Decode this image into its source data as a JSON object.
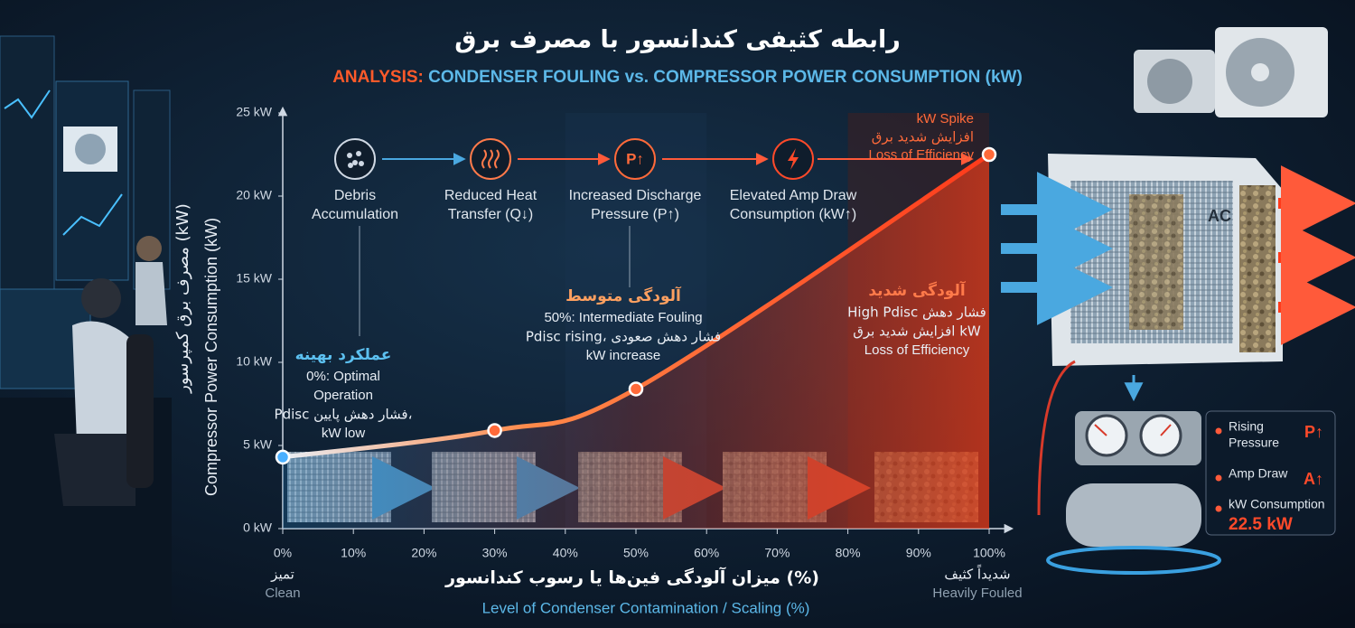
{
  "chart_data": {
    "type": "line",
    "title": "رابطه کثیفی کندانسور با مصرف برق",
    "subtitle": {
      "lead": "ANALYSIS:",
      "text": "CONDENSER FOULING vs. COMPRESSOR POWER CONSUMPTION (kW)"
    },
    "ylabel": [
      "مصرف برق کمپرسور (kW)",
      "Compressor Power Consumption (kW)"
    ],
    "xlabel": [
      "میزان آلودگی فین‌ها یا رسوب کندانسور (%)",
      "Level of Condenser Contamination / Scaling (%)"
    ],
    "x_end_labels": {
      "start": [
        "تمیز",
        "Clean"
      ],
      "end": [
        "شدیداً کثیف",
        "Heavily Fouled"
      ]
    },
    "x": [
      0,
      30,
      50,
      100
    ],
    "series": [
      {
        "name": "Compressor Power Consumption",
        "color": "#ff4a2a",
        "values": [
          4.3,
          5.9,
          8.4,
          22.5
        ]
      }
    ],
    "xlim": [
      0,
      100
    ],
    "ylim": [
      0,
      25
    ],
    "xticks": [
      {
        "value": 0,
        "label": "0%"
      },
      {
        "value": 10,
        "label": "10%"
      },
      {
        "value": 20,
        "label": "20%"
      },
      {
        "value": 30,
        "label": "30%"
      },
      {
        "value": 40,
        "label": "40%"
      },
      {
        "value": 50,
        "label": "50%"
      },
      {
        "value": 60,
        "label": "60%"
      },
      {
        "value": 70,
        "label": "70%"
      },
      {
        "value": 80,
        "label": "80%"
      },
      {
        "value": 90,
        "label": "90%"
      },
      {
        "value": 100,
        "label": "100%"
      }
    ],
    "yticks": [
      {
        "value": 0,
        "label": "0 kW"
      },
      {
        "value": 5,
        "label": "5 kW"
      },
      {
        "value": 10,
        "label": "10 kW"
      },
      {
        "value": 15,
        "label": "15 kW"
      },
      {
        "value": 20,
        "label": "20 kW"
      },
      {
        "value": 25,
        "label": "25 kW"
      }
    ],
    "process_steps": [
      {
        "lines": [
          "Debris",
          "Accumulation"
        ]
      },
      {
        "lines": [
          "Reduced Heat",
          "Transfer (Q↓)"
        ]
      },
      {
        "icon": "P↑",
        "lines": [
          "Increased Discharge",
          "Pressure (P↑)"
        ]
      },
      {
        "lines": [
          "Elevated Amp Draw",
          "Consumption (kW↑)"
        ]
      }
    ],
    "annotations": [
      {
        "x": 0,
        "heading": "عملکرد بهینه",
        "lines": [
          "0%: Optimal",
          "Operation",
          "Pdisc فشار دهش پایین،",
          "kW low"
        ]
      },
      {
        "x": 50,
        "heading": "آلودگی متوسط",
        "lines": [
          "50%: Intermediate Fouling",
          "Pdisc rising، فشار دهش صعودی",
          "kW increase"
        ]
      },
      {
        "x": 100,
        "heading": "آلودگی شدید",
        "lines": [
          "High Pdisc فشار دهش",
          "افزایش شدید برق kW",
          "Loss of Efficiency"
        ]
      }
    ],
    "spike_label": [
      "kW Spike",
      "افزایش شدید برق",
      "Loss of Efficiency"
    ],
    "grid": false
  },
  "illustration": {
    "unit_label": "AC",
    "panel": [
      {
        "lines": [
          "Rising",
          "Pressure"
        ],
        "symbol": "P↑"
      },
      {
        "lines": [
          "Amp Draw"
        ],
        "symbol": "A↑"
      },
      {
        "lines": [
          "kW Consumption"
        ],
        "value": "22.5 kW"
      }
    ]
  }
}
